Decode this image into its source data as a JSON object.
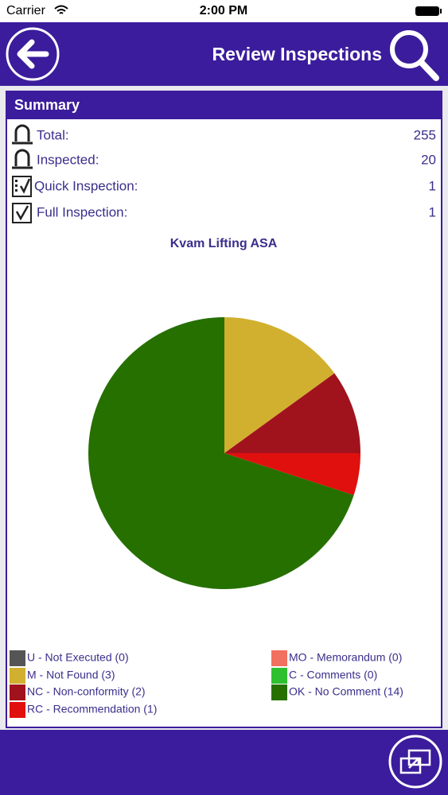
{
  "status_bar": {
    "carrier": "Carrier",
    "time": "2:00 PM"
  },
  "header": {
    "title": "Review Inspections"
  },
  "summary": {
    "title": "Summary",
    "rows": [
      {
        "label": "Total:",
        "value": 255
      },
      {
        "label": "Inspected:",
        "value": 20
      },
      {
        "label": "Quick Inspection:",
        "value": 1
      },
      {
        "label": "Full Inspection:",
        "value": 1
      }
    ]
  },
  "chart_data": {
    "type": "pie",
    "title": "Kvam Lifting ASA",
    "categories": [
      "U - Not Executed (0)",
      "M - Not Found (3)",
      "NC - Non-conformity (2)",
      "RC - Recommendation (1)",
      "MO - Memorandum (0)",
      "C - Comments (0)",
      "OK - No Comment (14)"
    ],
    "values": [
      0,
      3,
      2,
      1,
      0,
      0,
      14
    ],
    "colors": [
      "#555555",
      "#d1b02f",
      "#a0131d",
      "#e0100e",
      "#f2705f",
      "#2fc02f",
      "#267000"
    ]
  }
}
